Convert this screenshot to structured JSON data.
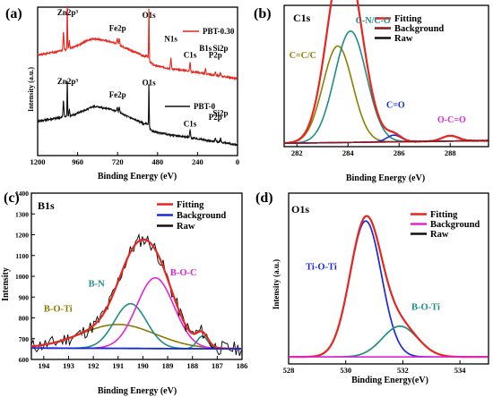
{
  "chart_data": [
    {
      "panel": "(a)",
      "type": "line",
      "xlabel": "Binding Energy (eV)",
      "ylabel": "Intensity (a.u.)",
      "xlim": [
        1200,
        0
      ],
      "x_reversed": true,
      "xticks": [
        1200,
        960,
        720,
        480,
        240,
        0
      ],
      "legend_position": "top-right",
      "series": [
        {
          "name": "PBT-0.30",
          "color": "#e8251f",
          "offset": 0.58,
          "points": [
            [
              1200,
              0.18
            ],
            [
              1100,
              0.2
            ],
            [
              1000,
              0.23
            ],
            [
              960,
              0.25
            ],
            [
              900,
              0.29
            ],
            [
              870,
              0.3
            ],
            [
              850,
              0.3
            ],
            [
              800,
              0.29
            ],
            [
              760,
              0.28
            ],
            [
              740,
              0.27
            ],
            [
              720,
              0.26
            ],
            [
              650,
              0.22
            ],
            [
              560,
              0.17
            ],
            [
              540,
              0.17
            ],
            [
              532,
              0.14
            ],
            [
              520,
              0.12
            ],
            [
              500,
              0.1
            ],
            [
              460,
              0.09
            ],
            [
              420,
              0.08
            ],
            [
              400,
              0.075
            ],
            [
              300,
              0.06
            ],
            [
              290,
              0.055
            ],
            [
              200,
              0.04
            ],
            [
              190,
              0.035
            ],
            [
              160,
              0.03
            ],
            [
              150,
              0.028
            ],
            [
              100,
              0.02
            ],
            [
              0,
              0.0
            ]
          ]
        },
        {
          "name": "PBT-0",
          "color": "#111111",
          "offset": 0.08,
          "points": [
            [
              1200,
              0.18
            ],
            [
              1100,
              0.2
            ],
            [
              1000,
              0.22
            ],
            [
              960,
              0.24
            ],
            [
              900,
              0.27
            ],
            [
              870,
              0.29
            ],
            [
              850,
              0.29
            ],
            [
              800,
              0.28
            ],
            [
              760,
              0.27
            ],
            [
              740,
              0.26
            ],
            [
              720,
              0.25
            ],
            [
              650,
              0.21
            ],
            [
              560,
              0.16
            ],
            [
              540,
              0.16
            ],
            [
              532,
              0.13
            ],
            [
              520,
              0.11
            ],
            [
              500,
              0.1
            ],
            [
              460,
              0.09
            ],
            [
              400,
              0.075
            ],
            [
              300,
              0.06
            ],
            [
              290,
              0.055
            ],
            [
              200,
              0.04
            ],
            [
              190,
              0.035
            ],
            [
              160,
              0.03
            ],
            [
              150,
              0.028
            ],
            [
              100,
              0.02
            ],
            [
              0,
              0.0
            ]
          ]
        }
      ],
      "peaks_top": [
        {
          "x": 1045,
          "h": 0.14
        },
        {
          "x": 1022,
          "h": 0.34
        },
        {
          "x": 1010,
          "h": 0.06
        },
        {
          "x": 722,
          "h": 0.04
        },
        {
          "x": 710,
          "h": 0.05
        },
        {
          "x": 532,
          "h": 0.4
        },
        {
          "x": 400,
          "h": 0.08
        },
        {
          "x": 192,
          "h": 0.04
        },
        {
          "x": 285,
          "h": 0.07
        },
        {
          "x": 133,
          "h": 0.03
        },
        {
          "x": 102,
          "h": 0.025
        }
      ],
      "peaks_bottom": [
        {
          "x": 1045,
          "h": 0.12
        },
        {
          "x": 1022,
          "h": 0.28
        },
        {
          "x": 1010,
          "h": 0.05
        },
        {
          "x": 722,
          "h": 0.035
        },
        {
          "x": 710,
          "h": 0.04
        },
        {
          "x": 532,
          "h": 0.34
        },
        {
          "x": 285,
          "h": 0.06
        },
        {
          "x": 133,
          "h": 0.03
        },
        {
          "x": 102,
          "h": 0.03
        }
      ],
      "annotations_top": [
        {
          "text": "Zn2p³",
          "x": 1020,
          "y": 1.06
        },
        {
          "text": "Fe2p",
          "x": 720,
          "y": 0.94
        },
        {
          "text": "O1s",
          "x": 532,
          "y": 1.04
        },
        {
          "text": "N1s",
          "x": 400,
          "y": 0.86
        },
        {
          "text": "B1s",
          "x": 192,
          "y": 0.79
        },
        {
          "text": "C1s",
          "x": 285,
          "y": 0.74
        },
        {
          "text": "P2p",
          "x": 133,
          "y": 0.74
        },
        {
          "text": "Si2p",
          "x": 102,
          "y": 0.79
        }
      ],
      "annotations_bottom": [
        {
          "text": "Zn2p³",
          "x": 1020,
          "y": 0.54
        },
        {
          "text": "Fe2p",
          "x": 720,
          "y": 0.44
        },
        {
          "text": "O1s",
          "x": 532,
          "y": 0.53
        },
        {
          "text": "C1s",
          "x": 285,
          "y": 0.22
        },
        {
          "text": "P2p",
          "x": 133,
          "y": 0.27
        },
        {
          "text": "Si2p",
          "x": 102,
          "y": 0.3
        }
      ]
    },
    {
      "panel": "(b)",
      "title": "C1s",
      "type": "line",
      "xlabel": "Binding Energy (eV)",
      "xlim": [
        281.5,
        289.5
      ],
      "xticks": [
        282,
        284,
        286,
        288
      ],
      "legend_position": "top-right",
      "legend": [
        {
          "name": "Fitting",
          "color": "#e8251f"
        },
        {
          "name": "Background",
          "color": "#8b1a1a"
        },
        {
          "name": "Raw",
          "color": "#111111"
        }
      ],
      "components": [
        {
          "name": "C=C/C",
          "center": 283.6,
          "height": 0.72,
          "width": 0.58,
          "color": "#8b8000"
        },
        {
          "name": "C-N/C-O",
          "center": 284.1,
          "height": 0.83,
          "width": 0.62,
          "color": "#1f8c86"
        },
        {
          "name": "C=O",
          "center": 285.8,
          "height": 0.05,
          "width": 0.28,
          "color": "#1a2ad8"
        },
        {
          "name": "O-C=O",
          "center": 288.0,
          "height": 0.04,
          "width": 0.32,
          "color": "#e025d8"
        }
      ],
      "label_positions": [
        {
          "text": "C=C/C",
          "x": 281.7,
          "y": 0.64,
          "color": "#8b8000"
        },
        {
          "text": "C-N/C-O",
          "x": 284.3,
          "y": 0.9,
          "color": "#1f8c86"
        },
        {
          "text": "C=O",
          "x": 285.5,
          "y": 0.27,
          "color": "#1a2ad8"
        },
        {
          "text": "O-C=O",
          "x": 287.5,
          "y": 0.16,
          "color": "#e025d8"
        }
      ]
    },
    {
      "panel": "(c)",
      "title": "B1s",
      "type": "line",
      "xlabel": "Binding Energy (eV)",
      "ylabel": "Intensity",
      "xlim": [
        194.5,
        186
      ],
      "x_reversed": true,
      "ylim": [
        600,
        1400
      ],
      "xticks": [
        194,
        193,
        192,
        191,
        190,
        189,
        188,
        187,
        186
      ],
      "yticks": [
        600,
        700,
        800,
        900,
        1000,
        1100,
        1200,
        1300,
        1400
      ],
      "legend_position": "top-right",
      "legend": [
        {
          "name": "Fitting",
          "color": "#e8251f"
        },
        {
          "name": "Background",
          "color": "#1a2ad8"
        },
        {
          "name": "Raw",
          "color": "#111111"
        }
      ],
      "baseline": 655,
      "components": [
        {
          "name": "B-O-Ti",
          "center": 191.0,
          "height": 115,
          "width": 1.5,
          "color": "#8b7a00"
        },
        {
          "name": "B-N",
          "center": 190.5,
          "height": 215,
          "width": 0.65,
          "color": "#1f8c86"
        },
        {
          "name": "B-O-C",
          "center": 189.5,
          "height": 340,
          "width": 0.75,
          "color": "#e025d8"
        },
        {
          "name": "",
          "center": 187.6,
          "height": 60,
          "width": 0.22,
          "color": "#1f8c86"
        }
      ],
      "label_positions": [
        {
          "text": "B-N",
          "x": 192.2,
          "y": 950,
          "color": "#1f8c86"
        },
        {
          "text": "B-O-Ti",
          "x": 194.0,
          "y": 830,
          "color": "#8b7a00"
        },
        {
          "text": "B-O-C",
          "x": 188.9,
          "y": 1005,
          "color": "#e025d8"
        }
      ]
    },
    {
      "panel": "(d)",
      "title": "O1s",
      "type": "line",
      "xlabel": "Binding Energy(eV)",
      "ylabel": "Intensity (a.u.)",
      "xlim": [
        528,
        535
      ],
      "xticks": [
        528,
        530,
        532,
        534
      ],
      "legend_position": "top-right",
      "legend": [
        {
          "name": "Fitting",
          "color": "#e8251f"
        },
        {
          "name": "Background",
          "color": "#e025d8"
        },
        {
          "name": "Raw",
          "color": "#111111"
        }
      ],
      "components": [
        {
          "name": "Ti-O-Ti",
          "center": 530.7,
          "height": 0.84,
          "width": 0.55,
          "color": "#1a2ad8"
        },
        {
          "name": "B-O-Ti",
          "center": 531.9,
          "height": 0.19,
          "width": 0.62,
          "color": "#1f8c86"
        }
      ],
      "label_positions": [
        {
          "text": "Ti-O-Ti",
          "x": 528.6,
          "y": 0.55,
          "color": "#1a2ad8"
        },
        {
          "text": "B-O-Ti",
          "x": 532.3,
          "y": 0.3,
          "color": "#1f8c86"
        }
      ]
    }
  ]
}
